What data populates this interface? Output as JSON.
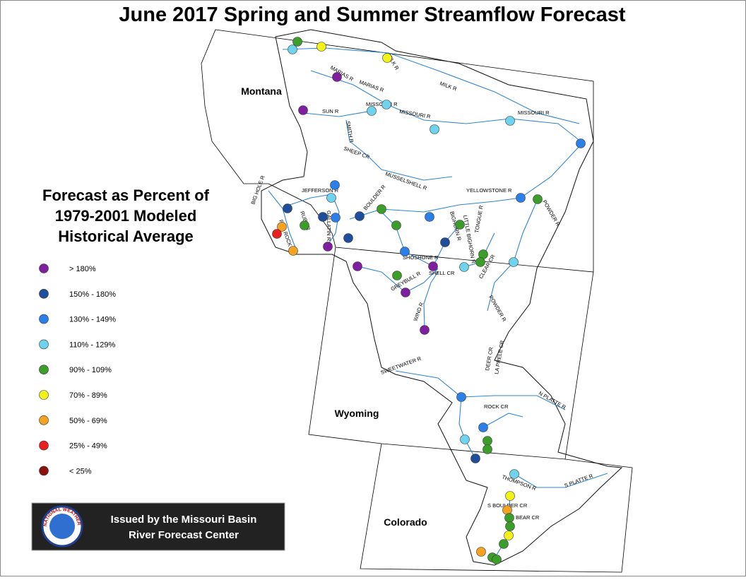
{
  "title": "June 2017 Spring and Summer Streamflow Forecast",
  "legend": {
    "title_lines": [
      "Forecast as Percent of",
      "1979-2001 Modeled",
      "Historical Average"
    ],
    "items": [
      {
        "label": "> 180%",
        "color": "#7f1fa0"
      },
      {
        "label": "150% - 180%",
        "color": "#1f4e9c"
      },
      {
        "label": "130% - 149%",
        "color": "#2a7fe8"
      },
      {
        "label": "110% - 129%",
        "color": "#6fd3ee"
      },
      {
        "label": "90% - 109%",
        "color": "#3c9e2a"
      },
      {
        "label": "70% - 89%",
        "color": "#f2f21a"
      },
      {
        "label": "50% - 69%",
        "color": "#f4a21f"
      },
      {
        "label": "25% - 49%",
        "color": "#e8201e"
      },
      {
        "label": "< 25%",
        "color": "#8b1010"
      }
    ]
  },
  "states": [
    "Montana",
    "Wyoming",
    "Colorado"
  ],
  "river_labels": [
    "MILK R",
    "MILK R",
    "MARIAS R",
    "MARIAS R",
    "MISSOURI R",
    "MISSOURI R",
    "MISSOURI R",
    "SUN R",
    "SMITH R",
    "SHEEP CR",
    "MUSSELSHELL R",
    "JEFFERSON R",
    "BIG HOLE R",
    "RUBY R",
    "GALLATIN R",
    "RED ROCK CR",
    "BOULDER R",
    "YELLOWSTONE R",
    "BIGHORN R",
    "LITTLE BIGHORN R",
    "TONGUE R",
    "POWDER R",
    "POWDER R",
    "SHOSHONE R",
    "SHELL CR",
    "GREYBULL R",
    "CLEAR CR",
    "WIND R",
    "SWEETWATER R",
    "DEER CR",
    "LA PRELE CR",
    "N PLATTE R",
    "ROCK CR",
    "THOMPSON R",
    "S PLATTE R",
    "S BOULDER CR",
    "BEAR CR"
  ],
  "issued_by": [
    "Issued by the Missouri Basin",
    "River Forecast Center"
  ],
  "logo_text": "NATIONAL WEATHER SERVICE"
}
